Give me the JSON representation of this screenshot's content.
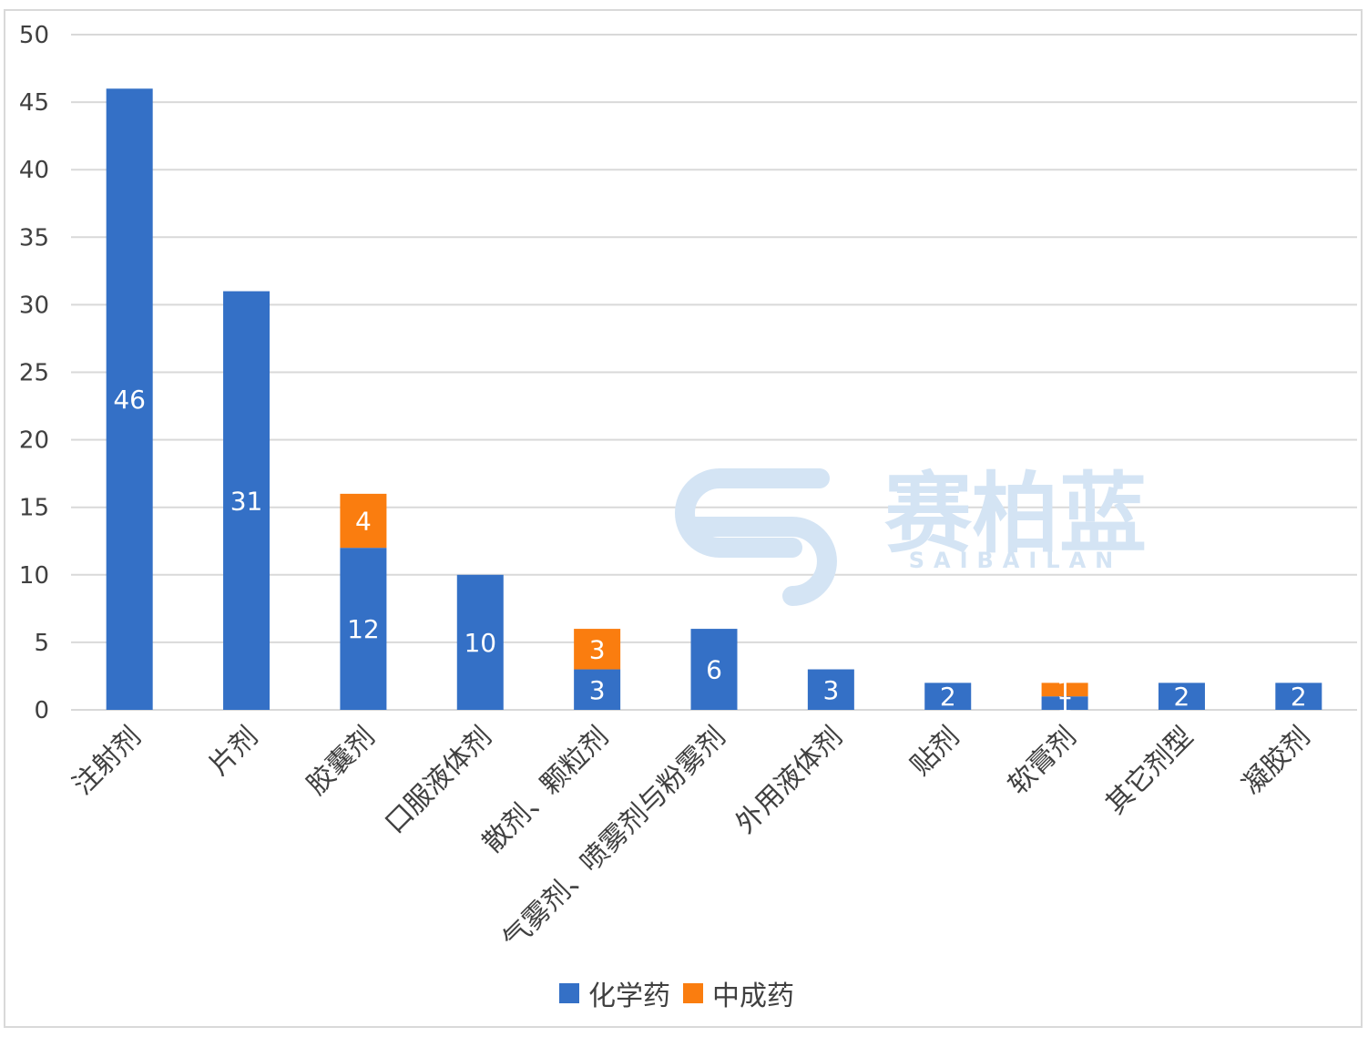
{
  "chart_data": {
    "type": "bar",
    "stacked": true,
    "categories": [
      "注射剂",
      "片剂",
      "胶囊剂",
      "口服液体剂",
      "散剂、颗粒剂",
      "气雾剂、喷雾剂与粉雾剂",
      "外用液体剂",
      "贴剂",
      "软膏剂",
      "其它剂型",
      "凝胶剂"
    ],
    "series": [
      {
        "name": "化学药",
        "color": "#3470C6",
        "values": [
          46,
          31,
          12,
          10,
          3,
          6,
          3,
          2,
          1,
          2,
          2
        ]
      },
      {
        "name": "中成药",
        "color": "#FA7D0F",
        "values": [
          0,
          0,
          4,
          0,
          3,
          0,
          0,
          0,
          1,
          0,
          0
        ]
      }
    ],
    "yticks": [
      "0",
      "5",
      "10",
      "15",
      "20",
      "25",
      "30",
      "35",
      "40",
      "45",
      "50"
    ],
    "ylim": [
      0,
      50
    ],
    "grid": true,
    "legend_position": "bottom"
  },
  "watermark": {
    "text": "赛柏蓝",
    "subtext": "SAIBAILAN",
    "color": "#d4e4f4"
  },
  "colors": {
    "grid": "#d9d9d9",
    "axis_text": "#404040"
  }
}
